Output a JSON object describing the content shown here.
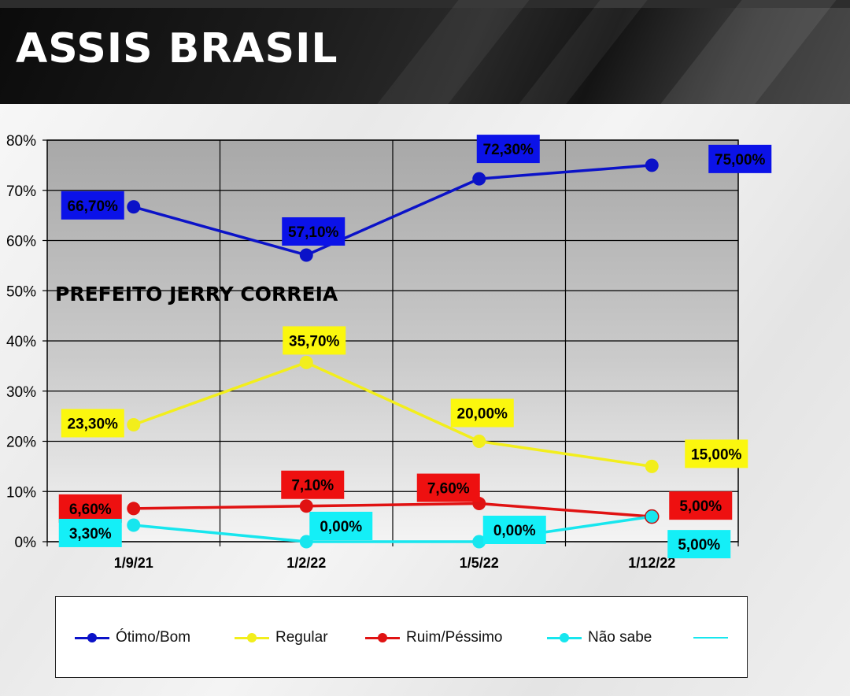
{
  "header": {
    "title": "ASSIS BRASIL"
  },
  "chart_data": {
    "type": "line",
    "title": "",
    "annotation": "PREFEITO JERRY CORREIA",
    "categories": [
      "1/9/21",
      "1/2/22",
      "1/5/22",
      "1/12/22"
    ],
    "ylim": [
      0,
      80
    ],
    "yticks": [
      0,
      10,
      20,
      30,
      40,
      50,
      60,
      70,
      80
    ],
    "ytick_labels": [
      "0%",
      "10%",
      "20%",
      "30%",
      "40%",
      "50%",
      "60%",
      "70%",
      "80%"
    ],
    "grid": true,
    "series": [
      {
        "name": "Ótimo/Bom",
        "color": "#0b12c8",
        "label_bg": "#0b12e8",
        "values": [
          66.7,
          57.1,
          72.3,
          75.0
        ],
        "labels": [
          "66,70%",
          "57,10%",
          "72,30%",
          "75,00%"
        ]
      },
      {
        "name": "Regular",
        "color": "#f2ee1c",
        "label_bg": "#fbf70e",
        "values": [
          23.3,
          35.7,
          20.0,
          15.0
        ],
        "labels": [
          "23,30%",
          "35,70%",
          "20,00%",
          "15,00%"
        ]
      },
      {
        "name": "Ruim/Péssimo",
        "color": "#e01212",
        "label_bg": "#ee1010",
        "values": [
          6.6,
          7.1,
          7.6,
          5.0
        ],
        "labels": [
          "6,60%",
          "7,10%",
          "7,60%",
          "5,00%"
        ]
      },
      {
        "name": "Não sabe",
        "color": "#17e6ee",
        "label_bg": "#14eff7",
        "values": [
          3.3,
          0.0,
          0.0,
          5.0
        ],
        "labels": [
          "3,30%",
          "0,00%",
          "0,00%",
          "5,00%"
        ]
      }
    ],
    "legend_extra_color": "#17e6ee"
  }
}
